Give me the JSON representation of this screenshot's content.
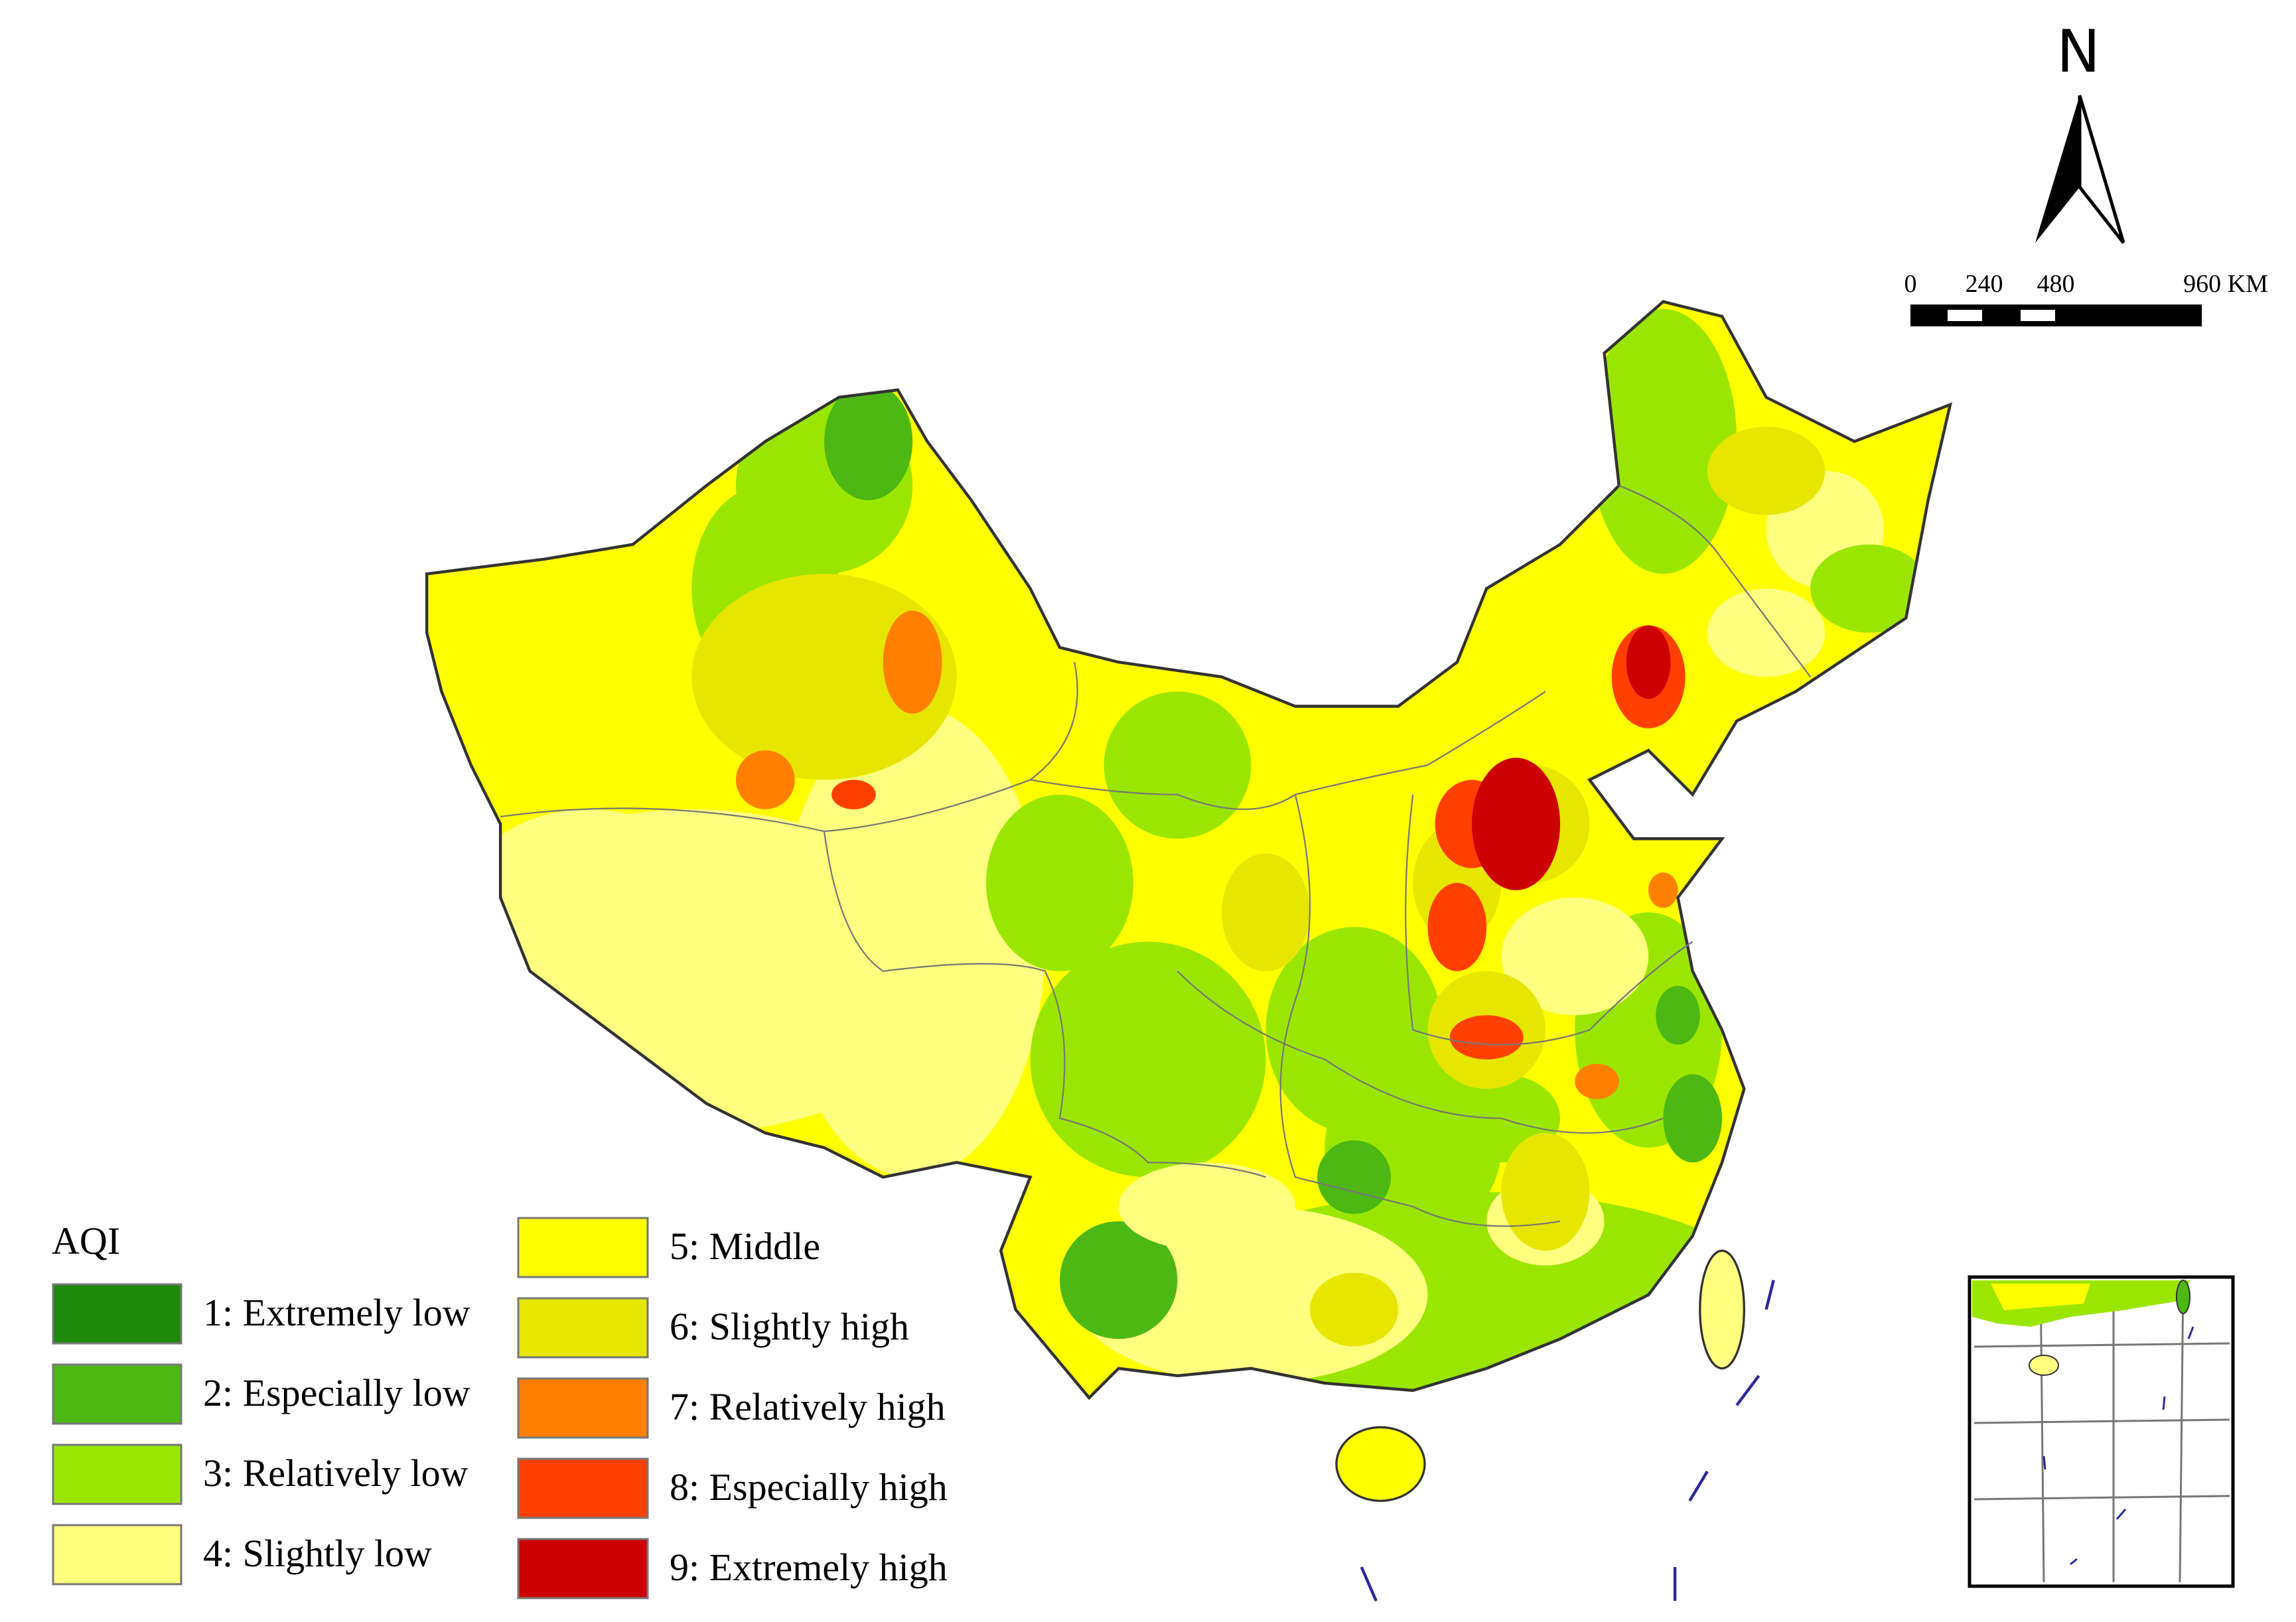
{
  "north": "N",
  "scale": {
    "labels": [
      "0",
      "240",
      "480",
      "960 KM"
    ]
  },
  "legend": {
    "title": "AQI",
    "items": [
      {
        "label": "1: Extremely low",
        "color": "#1f8a0a"
      },
      {
        "label": "2: Especially low",
        "color": "#4db814"
      },
      {
        "label": "3: Relatively low",
        "color": "#9be600"
      },
      {
        "label": "4: Slightly low",
        "color": "#ffff80"
      },
      {
        "label": "5: Middle",
        "color": "#ffff00"
      },
      {
        "label": "6: Slightly high",
        "color": "#e6e600"
      },
      {
        "label": "7: Relatively high",
        "color": "#ff8000"
      },
      {
        "label": "8: Especially high",
        "color": "#ff4000"
      },
      {
        "label": "9: Extremely high",
        "color": "#cc0000"
      }
    ]
  }
}
